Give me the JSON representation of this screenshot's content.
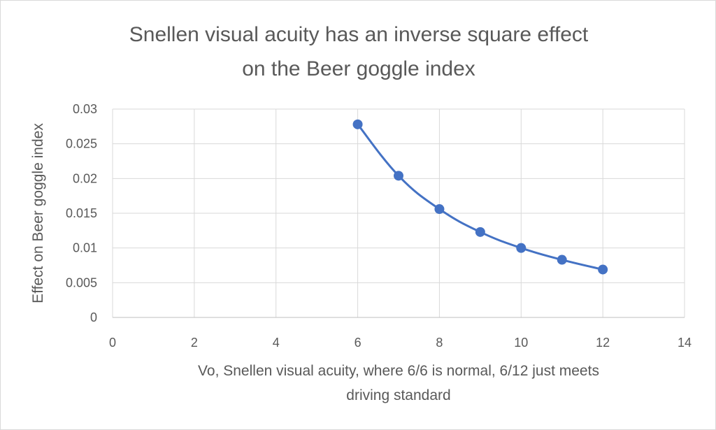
{
  "chart_data": {
    "type": "scatter",
    "title_lines": [
      "Snellen visual acuity has an inverse square effect",
      "on the Beer goggle index"
    ],
    "xlabel_lines": [
      "Vo, Snellen visual acuity, where 6/6 is normal, 6/12 just meets",
      "driving standard"
    ],
    "ylabel": "Effect on Beer goggle index",
    "xlim": [
      0,
      14
    ],
    "ylim": [
      0,
      0.03
    ],
    "x_ticks": [
      "0",
      "2",
      "4",
      "6",
      "8",
      "10",
      "12",
      "14"
    ],
    "y_ticks": [
      "0",
      "0.005",
      "0.01",
      "0.015",
      "0.02",
      "0.025",
      "0.03"
    ],
    "grid": true,
    "line_style": "smoothed line with markers",
    "series": [
      {
        "color": "#4472c4",
        "x": [
          6,
          7,
          8,
          9,
          10,
          11,
          12
        ],
        "y": [
          0.0278,
          0.0204,
          0.0156,
          0.0123,
          0.01,
          0.0083,
          0.0069
        ]
      }
    ]
  }
}
